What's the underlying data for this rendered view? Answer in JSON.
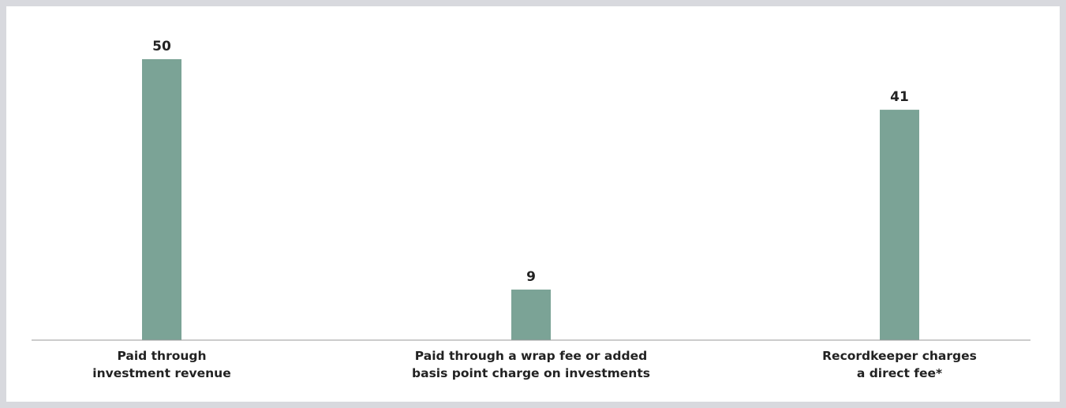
{
  "chart_data": {
    "type": "bar",
    "categories": [
      [
        "Paid through",
        "investment revenue"
      ],
      [
        "Paid through a wrap fee or added",
        "basis point charge on investments"
      ],
      [
        "Recordkeeper charges",
        "a direct fee*"
      ]
    ],
    "values": [
      50,
      9,
      41
    ],
    "color": "#7ba396"
  }
}
